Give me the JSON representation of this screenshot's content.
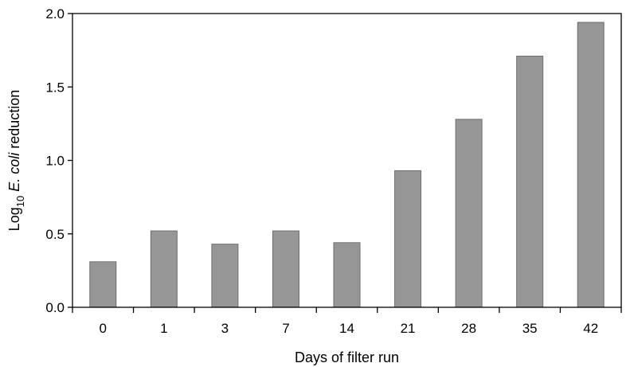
{
  "chart_data": {
    "type": "bar",
    "categories": [
      "0",
      "1",
      "3",
      "7",
      "14",
      "21",
      "28",
      "35",
      "42"
    ],
    "values": [
      0.31,
      0.52,
      0.43,
      0.52,
      0.44,
      0.93,
      1.28,
      1.71,
      1.94
    ],
    "xlabel": "Days of filter run",
    "ylabel": {
      "prefix": "Log",
      "subscript": "10",
      "italic": "E. coli",
      "suffix": " reduction"
    },
    "yticks": [
      "0.0",
      "0.5",
      "1.0",
      "1.5",
      "2.0"
    ],
    "ylim": [
      0,
      2.0
    ],
    "grid": false,
    "legend": "none",
    "bar_color": "#969696"
  }
}
